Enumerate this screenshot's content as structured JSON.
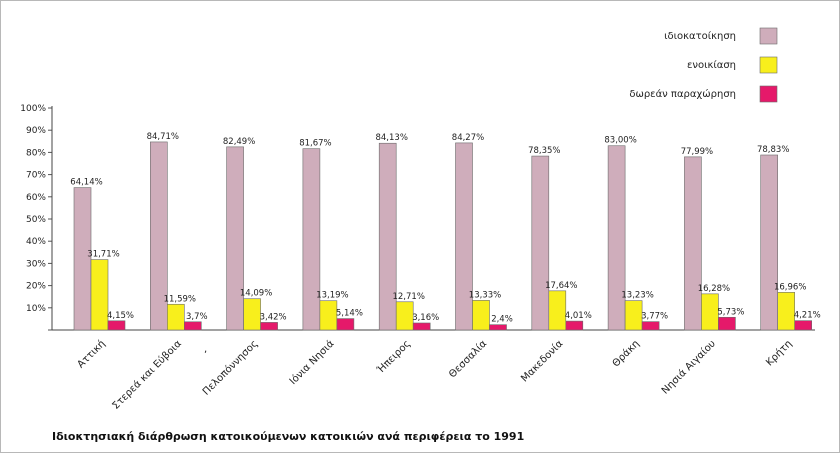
{
  "chart_data": {
    "type": "bar",
    "title": "Ιδιοκτησιακή διάρθρωση κατοικούμενων κατοικιών ανά περιφέρεια το 1991",
    "xlabel": "",
    "ylabel": "",
    "ylim": [
      0,
      100
    ],
    "yticks": [
      "",
      "10%",
      "20%",
      "30%",
      "40%",
      "50%",
      "60%",
      "70%",
      "80%",
      "90%",
      "100%"
    ],
    "legend_position": "top-right",
    "categories": [
      "Αττική",
      "Στερεά και Εύβοια",
      "Πελοπόννησος",
      "Ιόνια Νησιά",
      "Ήπειρος",
      "Θεσσαλία",
      "Μακεδονία",
      "Θράκη",
      "Νησιά Αιγαίου",
      "Κρήτη"
    ],
    "series": [
      {
        "name": "ιδιοκατοίκηση",
        "color": "#cfadbb",
        "values": [
          64.14,
          84.71,
          82.49,
          81.67,
          84.13,
          84.27,
          78.35,
          83.0,
          77.99,
          78.83
        ],
        "labels": [
          "64,14%",
          "84,71%",
          "82,49%",
          "81,67%",
          "84,13%",
          "84,27%",
          "78,35%",
          "83,00%",
          "77,99%",
          "78,83%"
        ]
      },
      {
        "name": "ενοικίαση",
        "color": "#f8ef1c",
        "values": [
          31.71,
          11.59,
          14.09,
          13.19,
          12.71,
          13.33,
          17.64,
          13.23,
          16.28,
          16.96
        ],
        "labels": [
          "31,71%",
          "11,59%",
          "14,09%",
          "13,19%",
          "12,71%",
          "13,33%",
          "17,64%",
          "13,23%",
          "16,28%",
          "16,96%"
        ]
      },
      {
        "name": "δωρεάν παραχώρηση",
        "color": "#e5196a",
        "values": [
          4.15,
          3.7,
          3.42,
          5.14,
          3.16,
          2.4,
          4.01,
          3.77,
          5.73,
          4.21
        ],
        "labels": [
          "4,15%",
          "3,7%",
          "3,42%",
          "5,14%",
          "3,16%",
          "2,4%",
          "4,01%",
          "3,77%",
          "5,73%",
          "4,21%"
        ]
      }
    ],
    "annotations": [
      ","
    ]
  }
}
